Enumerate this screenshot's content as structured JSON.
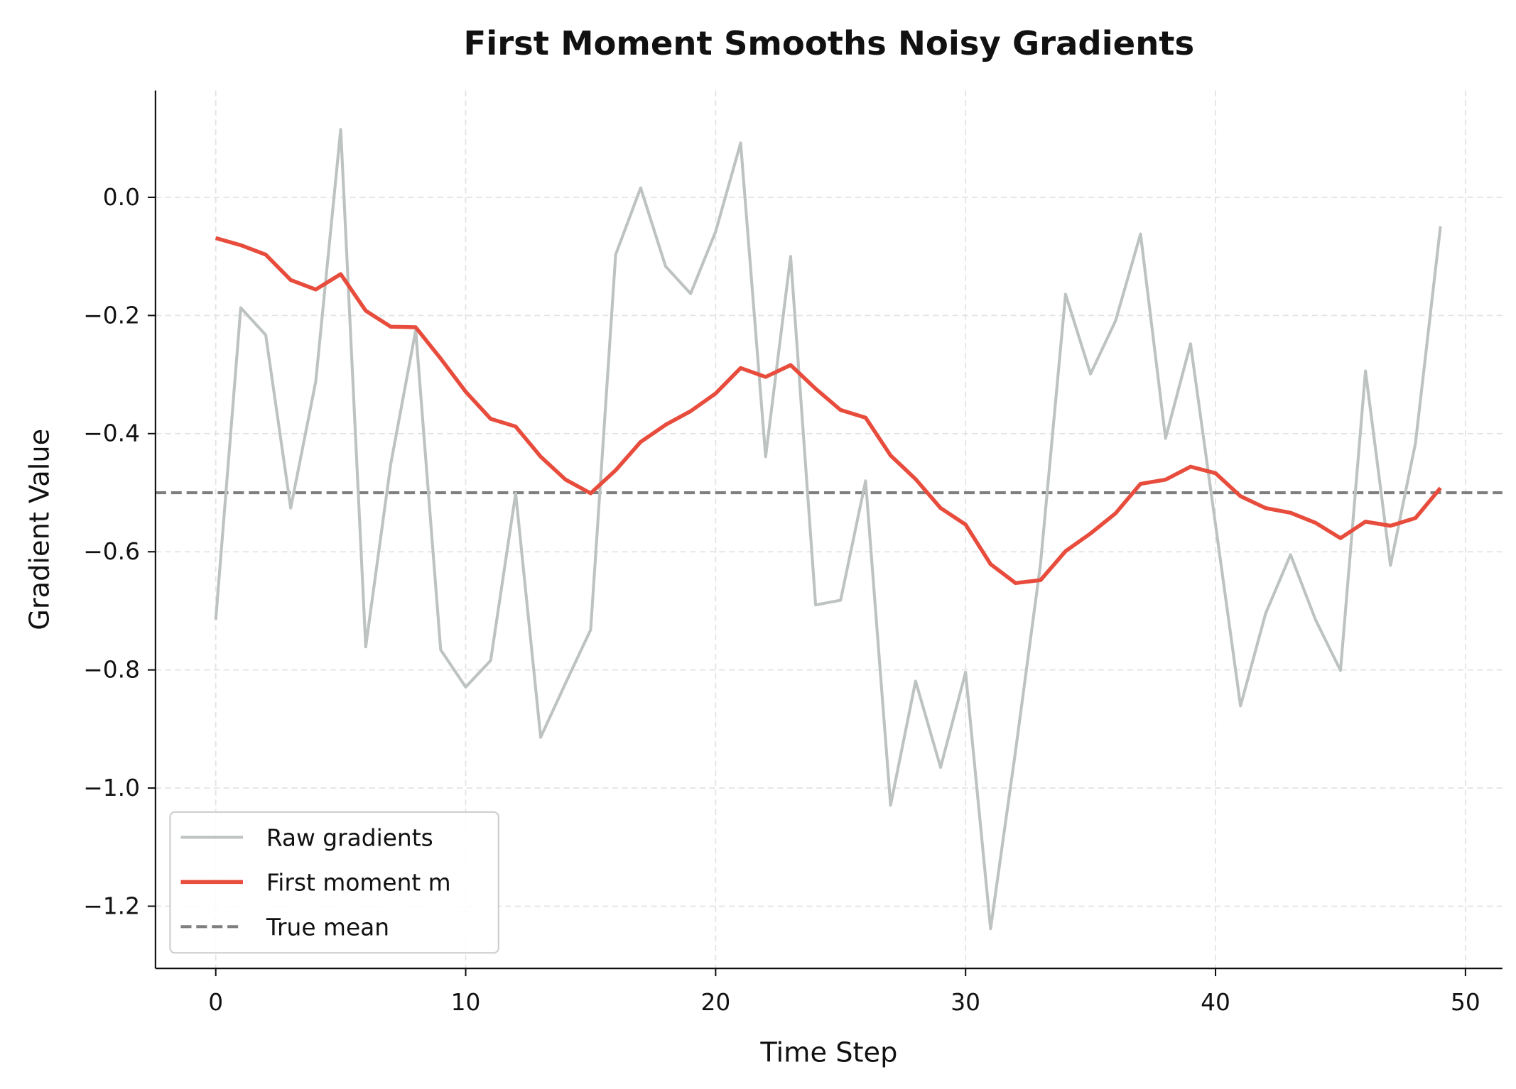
{
  "chart_data": {
    "type": "line",
    "title": "First Moment Smooths Noisy Gradients",
    "xlabel": "Time Step",
    "ylabel": "Gradient Value",
    "xlim": [
      -2.5,
      51.5
    ],
    "ylim": [
      -1.31,
      0.18
    ],
    "xticks": [
      0,
      10,
      20,
      30,
      40,
      50
    ],
    "yticks": [
      0.0,
      -0.2,
      -0.4,
      -0.6,
      -0.8,
      -1.0,
      -1.2
    ],
    "ytick_labels": [
      "0.0",
      "−0.2",
      "−0.4",
      "−0.6",
      "−0.8",
      "−1.0",
      "−1.2"
    ],
    "grid": true,
    "legend_placement": "lower-left",
    "x": [
      0,
      1,
      2,
      3,
      4,
      5,
      6,
      7,
      8,
      9,
      10,
      11,
      12,
      13,
      14,
      15,
      16,
      17,
      18,
      19,
      20,
      21,
      22,
      23,
      24,
      25,
      26,
      27,
      28,
      29,
      30,
      31,
      32,
      33,
      34,
      35,
      36,
      37,
      38,
      39,
      40,
      41,
      42,
      43,
      44,
      45,
      46,
      47,
      48,
      49
    ],
    "series": [
      {
        "name": "Raw gradients",
        "color": "#bdc3c1",
        "style": "solid",
        "values": [
          -0.715,
          -0.187,
          -0.233,
          -0.526,
          -0.312,
          0.115,
          -0.761,
          -0.452,
          -0.225,
          -0.766,
          -0.829,
          -0.784,
          -0.501,
          -0.914,
          -0.822,
          -0.732,
          -0.097,
          0.016,
          -0.117,
          -0.163,
          -0.058,
          0.092,
          -0.439,
          -0.1,
          -0.69,
          -0.682,
          -0.48,
          -1.029,
          -0.819,
          -0.965,
          -0.804,
          -1.238,
          -0.937,
          -0.62,
          -0.164,
          -0.299,
          -0.209,
          -0.062,
          -0.408,
          -0.248,
          -0.554,
          -0.861,
          -0.705,
          -0.605,
          -0.715,
          -0.801,
          -0.294,
          -0.623,
          -0.416,
          -0.049
        ]
      },
      {
        "name": "First moment m",
        "color": "#e74c3c",
        "style": "solid",
        "values": [
          -0.069,
          -0.081,
          -0.097,
          -0.14,
          -0.156,
          -0.13,
          -0.192,
          -0.219,
          -0.22,
          -0.273,
          -0.329,
          -0.375,
          -0.388,
          -0.439,
          -0.478,
          -0.501,
          -0.462,
          -0.414,
          -0.385,
          -0.362,
          -0.332,
          -0.289,
          -0.304,
          -0.284,
          -0.324,
          -0.36,
          -0.373,
          -0.437,
          -0.477,
          -0.526,
          -0.554,
          -0.621,
          -0.653,
          -0.648,
          -0.599,
          -0.569,
          -0.535,
          -0.485,
          -0.478,
          -0.456,
          -0.467,
          -0.506,
          -0.526,
          -0.534,
          -0.551,
          -0.577,
          -0.549,
          -0.556,
          -0.543,
          -0.492
        ]
      },
      {
        "name": "True mean",
        "color": "#7f7f7f",
        "style": "dashed",
        "constant": -0.5
      }
    ]
  }
}
